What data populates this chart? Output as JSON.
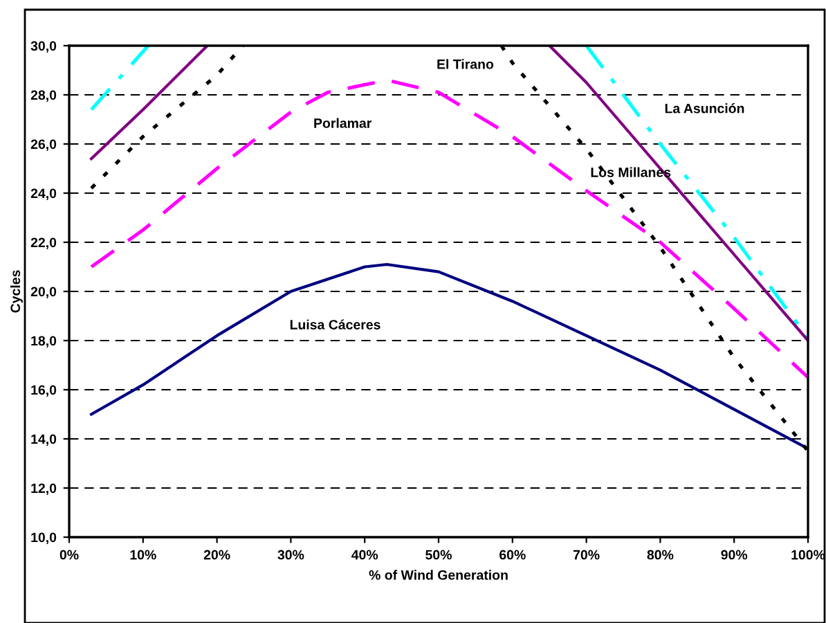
{
  "chart_data": {
    "type": "line",
    "xlabel": "% of Wind Generation",
    "ylabel": "Cycles",
    "xlim": [
      0,
      100
    ],
    "ylim": [
      10,
      30
    ],
    "xticks": [
      {
        "value": 0,
        "label": "0%"
      },
      {
        "value": 10,
        "label": "10%"
      },
      {
        "value": 20,
        "label": "20%"
      },
      {
        "value": 30,
        "label": "30%"
      },
      {
        "value": 40,
        "label": "40%"
      },
      {
        "value": 50,
        "label": "50%"
      },
      {
        "value": 60,
        "label": "60%"
      },
      {
        "value": 70,
        "label": "70%"
      },
      {
        "value": 80,
        "label": "80%"
      },
      {
        "value": 90,
        "label": "90%"
      },
      {
        "value": 100,
        "label": "100%"
      }
    ],
    "yticks": [
      {
        "value": 10,
        "label": "10,0"
      },
      {
        "value": 12,
        "label": "12,0"
      },
      {
        "value": 14,
        "label": "14,0"
      },
      {
        "value": 16,
        "label": "16,0"
      },
      {
        "value": 18,
        "label": "18,0"
      },
      {
        "value": 20,
        "label": "20,0"
      },
      {
        "value": 22,
        "label": "22,0"
      },
      {
        "value": 24,
        "label": "24,0"
      },
      {
        "value": 26,
        "label": "26,0"
      },
      {
        "value": 28,
        "label": "28,0"
      },
      {
        "value": 30,
        "label": "30,0"
      }
    ],
    "grid": "y",
    "legend": false,
    "series": [
      {
        "name": "Luisa Cáceres",
        "color": "#000080",
        "line_style": "solid",
        "x": [
          3,
          10,
          20,
          30,
          40,
          43,
          50,
          60,
          70,
          80,
          90,
          100
        ],
        "values": [
          15.0,
          16.2,
          18.2,
          20.0,
          21.0,
          21.1,
          20.8,
          19.6,
          18.2,
          16.8,
          15.2,
          13.6
        ]
      },
      {
        "name": "Porlamar",
        "color": "#ff00ff",
        "line_style": "dashed",
        "x": [
          3,
          10,
          20,
          30,
          35,
          43,
          50,
          60,
          70,
          80,
          90,
          100
        ],
        "values": [
          21.0,
          22.5,
          25.0,
          27.3,
          28.1,
          28.6,
          28.1,
          26.3,
          24.1,
          22.0,
          19.3,
          16.5
        ]
      },
      {
        "name": "El Tirano",
        "color": "#000000",
        "line_style": "dotted",
        "x": [
          3,
          10,
          20,
          23.5,
          40,
          58.5,
          60,
          70,
          80,
          90,
          100
        ],
        "values": [
          24.2,
          26.3,
          28.8,
          30.0,
          null,
          30.0,
          29.3,
          25.8,
          21.8,
          17.3,
          13.5
        ]
      },
      {
        "name": "La Asunción",
        "color": "#00ffff",
        "line_style": "dashdot",
        "x": [
          3,
          10.7,
          40,
          70,
          80,
          90,
          100
        ],
        "values": [
          27.4,
          30.0,
          null,
          30.0,
          26.0,
          22.2,
          18.1
        ]
      },
      {
        "name": "Los Millanes",
        "color": "#800080",
        "line_style": "solid",
        "x": [
          3,
          10,
          18.7,
          40,
          65,
          70,
          80,
          90,
          100
        ],
        "values": [
          25.4,
          27.4,
          30.0,
          null,
          30.0,
          28.5,
          25.0,
          21.5,
          18.0
        ]
      }
    ]
  }
}
